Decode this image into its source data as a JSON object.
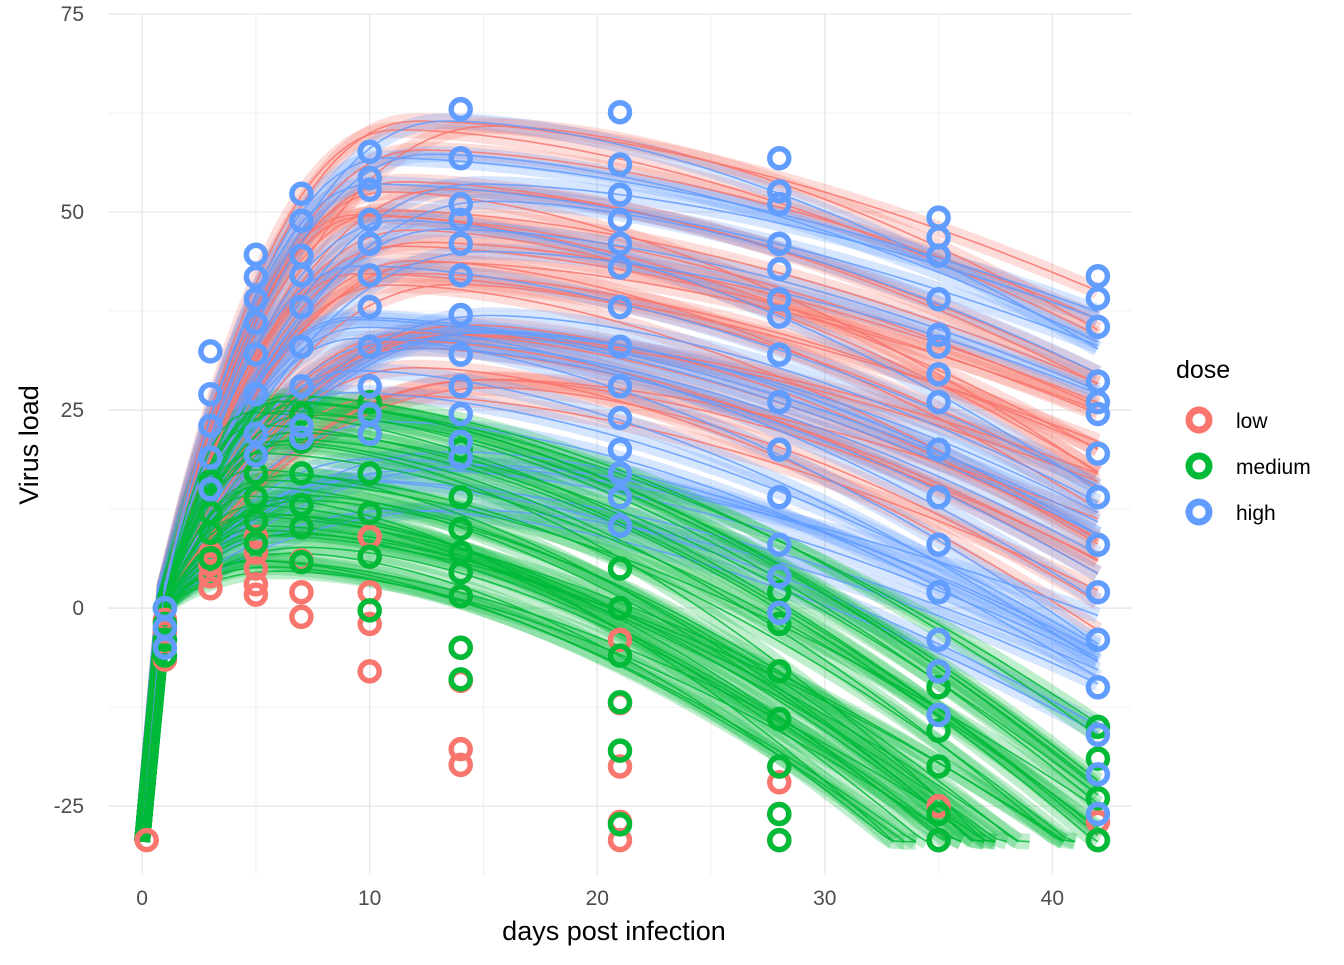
{
  "chart_data": {
    "type": "line",
    "title": "",
    "xlabel": "days post infection",
    "ylabel": "Virus load",
    "xlim": [
      -1.5,
      43.5
    ],
    "ylim": [
      -33.7,
      75
    ],
    "x_ticks": [
      0,
      10,
      20,
      30,
      40
    ],
    "x_tick_labels": [
      "0",
      "10",
      "20",
      "30",
      "40"
    ],
    "y_ticks": [
      -25,
      0,
      25,
      50,
      75
    ],
    "y_tick_labels": [
      "-25",
      "0",
      "25",
      "50",
      "75"
    ],
    "grid": true,
    "legend_position": "right",
    "legend": {
      "title": "dose",
      "entries": [
        {
          "label": "low",
          "color": "#F8766D"
        },
        {
          "label": "medium",
          "color": "#00BA38"
        },
        {
          "label": "high",
          "color": "#619CFF"
        }
      ]
    },
    "observation_days": [
      0.2,
      1,
      3,
      5,
      7,
      10,
      14,
      21,
      28,
      35,
      42
    ],
    "floor_value": -29.5,
    "series": [
      {
        "name": "low",
        "color": "#F8766D",
        "curve_peak_range": [
          26,
          62
        ],
        "points": [
          {
            "x": 0.2,
            "y": [
              -29.3
            ]
          },
          {
            "x": 1,
            "y": [
              -6.5,
              -3.0,
              -1.5
            ]
          },
          {
            "x": 3,
            "y": [
              2.5,
              4.0,
              5.5,
              7.0
            ]
          },
          {
            "x": 5,
            "y": [
              1.7,
              3.0,
              5.0,
              7.0,
              9.0,
              11.0
            ]
          },
          {
            "x": 7,
            "y": [
              -1.1,
              2.0,
              6.0,
              10.2
            ]
          },
          {
            "x": 10,
            "y": [
              -8.0,
              -2.0,
              2.0,
              6.5,
              9.0,
              12.0
            ]
          },
          {
            "x": 14,
            "y": [
              -19.8,
              -17.8,
              -9.2,
              -5.0,
              1.5,
              4.5
            ]
          },
          {
            "x": 21,
            "y": [
              -29.3,
              -27.0,
              -20.0,
              -12.0,
              -4.0
            ]
          },
          {
            "x": 28,
            "y": [
              -29.3,
              -26.0,
              -22.0,
              -20.0
            ]
          },
          {
            "x": 35,
            "y": [
              -29.3,
              -25.0
            ]
          },
          {
            "x": 42,
            "y": [
              -29.3,
              -27.0
            ]
          }
        ]
      },
      {
        "name": "medium",
        "color": "#00BA38",
        "curve_peak_range": [
          4,
          27
        ],
        "points": [
          {
            "x": 1,
            "y": [
              -6.0,
              -4.0,
              -2.0,
              0.0
            ]
          },
          {
            "x": 3,
            "y": [
              6.3,
              9.5,
              12.0,
              16.0
            ]
          },
          {
            "x": 5,
            "y": [
              8.2,
              11.0,
              14.0,
              17.0,
              19.5
            ]
          },
          {
            "x": 7,
            "y": [
              5.8,
              10.2,
              13.0,
              17.0,
              21.0,
              24.5
            ]
          },
          {
            "x": 10,
            "y": [
              -0.3,
              6.5,
              12.0,
              17.0,
              22.0,
              26.0
            ]
          },
          {
            "x": 14,
            "y": [
              -9.0,
              -5.0,
              1.5,
              4.5,
              7.0,
              10.0,
              14.0,
              20.0
            ]
          },
          {
            "x": 21,
            "y": [
              -27.3,
              -18.0,
              -11.9,
              -6.0,
              0.0,
              5.0,
              10.4
            ]
          },
          {
            "x": 28,
            "y": [
              -29.3,
              -26.0,
              -20.0,
              -14.0,
              -8.0,
              -2.0,
              2.0
            ]
          },
          {
            "x": 35,
            "y": [
              -29.3,
              -26.0,
              -20.0,
              -15.5,
              -10.0
            ]
          },
          {
            "x": 42,
            "y": [
              -29.3,
              -24.0,
              -19.0,
              -15.0
            ]
          }
        ]
      },
      {
        "name": "high",
        "color": "#619CFF",
        "curve_peak_range": [
          12,
          62
        ],
        "points": [
          {
            "x": 1,
            "y": [
              -5.0,
              -2.5,
              0.0
            ]
          },
          {
            "x": 3,
            "y": [
              15.0,
              19.0,
              23.0,
              27.0,
              32.4
            ]
          },
          {
            "x": 5,
            "y": [
              19.3,
              22.0,
              27.0,
              32.0,
              36.0,
              39.0,
              41.8,
              44.6
            ]
          },
          {
            "x": 7,
            "y": [
              21.5,
              23.0,
              28.0,
              33.0,
              38.0,
              42.0,
              44.5,
              48.9,
              52.3
            ]
          },
          {
            "x": 10,
            "y": [
              22.0,
              24.5,
              28.0,
              33.0,
              38.0,
              42.0,
              46.0,
              49.0,
              52.8,
              54.3,
              57.6
            ]
          },
          {
            "x": 14,
            "y": [
              19.0,
              21.0,
              24.5,
              28.0,
              32.0,
              37.0,
              42.0,
              46.0,
              49.0,
              51.0,
              56.8,
              63.0
            ]
          },
          {
            "x": 21,
            "y": [
              10.4,
              14.0,
              17.0,
              20.0,
              24.0,
              28.0,
              33.0,
              38.0,
              43.0,
              46.0,
              49.0,
              52.2,
              56.0,
              62.6
            ]
          },
          {
            "x": 28,
            "y": [
              -0.6,
              4.0,
              8.0,
              14.0,
              20.0,
              26.0,
              32.0,
              36.8,
              39.0,
              42.8,
              46.0,
              51.0,
              52.6,
              56.8
            ]
          },
          {
            "x": 35,
            "y": [
              -13.5,
              -8.0,
              -4.0,
              2.0,
              8.0,
              14.0,
              20.0,
              26.0,
              29.5,
              33.0,
              34.5,
              39.0,
              44.5,
              46.8,
              49.3
            ]
          },
          {
            "x": 42,
            "y": [
              -26.0,
              -21.0,
              -16.0,
              -10.0,
              -4.0,
              2.0,
              8.0,
              14.0,
              19.5,
              24.5,
              26.0,
              28.6,
              35.5,
              39.1,
              41.9
            ]
          }
        ]
      }
    ]
  }
}
